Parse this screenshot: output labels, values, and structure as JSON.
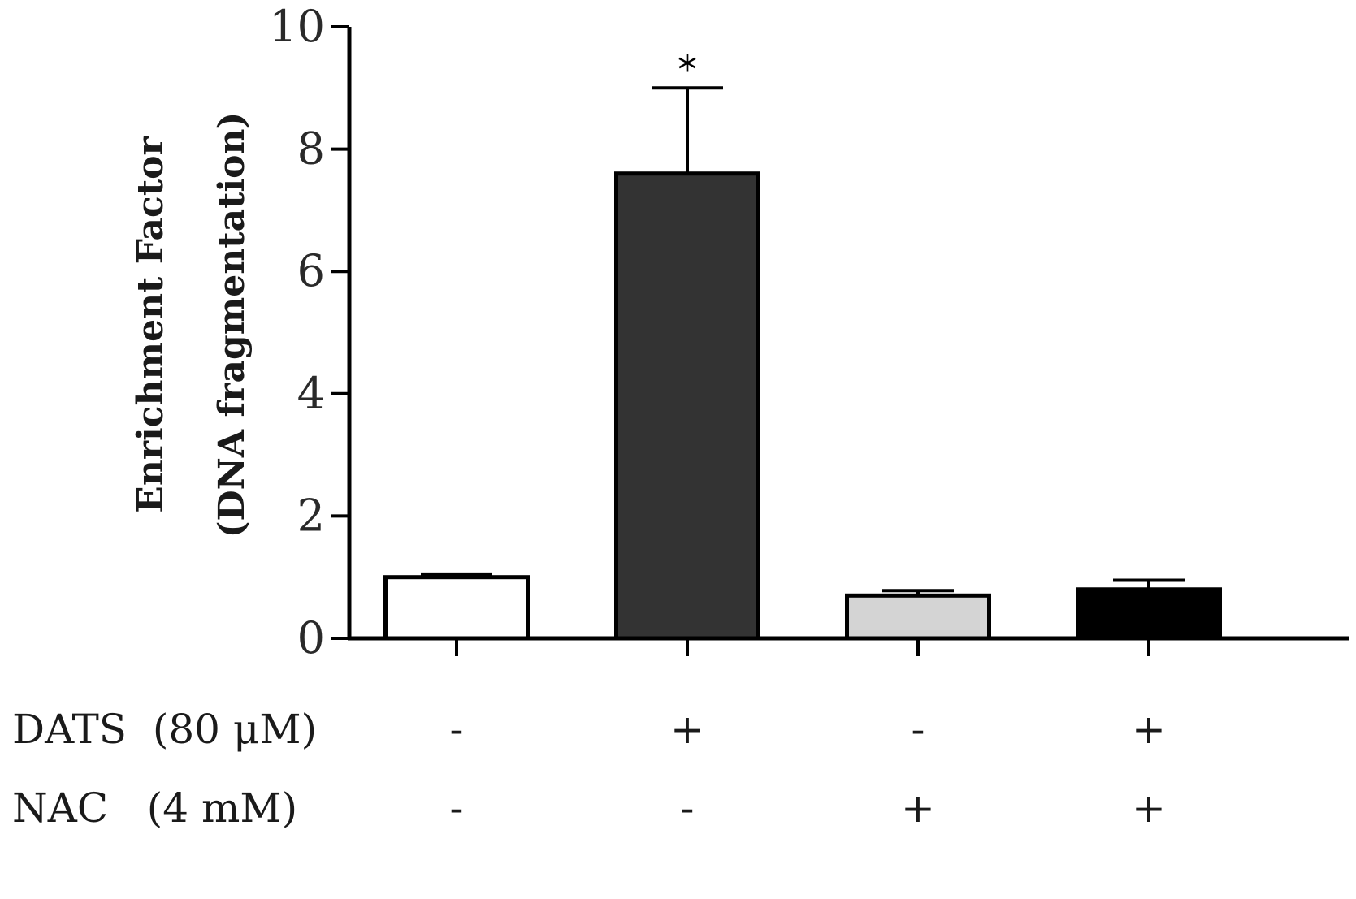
{
  "chart_data": {
    "type": "bar",
    "title": "",
    "xlabel": "",
    "ylabel_lines": [
      "Enrichment Factor",
      "(DNA fragmentation)"
    ],
    "ylim": [
      0,
      10
    ],
    "yticks": [
      "0",
      "2",
      "4",
      "6",
      "8",
      "10"
    ],
    "grid": false,
    "series": [
      {
        "values": [
          1.0,
          7.6,
          0.7,
          0.8
        ],
        "errors": [
          0.05,
          1.4,
          0.08,
          0.15
        ]
      }
    ],
    "bar_colors": [
      "#ffffff",
      "#333333",
      "#d4d4d4",
      "#000000"
    ],
    "significance": [
      "",
      "*",
      "",
      ""
    ],
    "conditions": [
      {
        "label": "DATS  (80 μM)",
        "signs": [
          "-",
          "+",
          "-",
          "+"
        ]
      },
      {
        "label": "NAC   (4 mM)",
        "signs": [
          "-",
          "-",
          "+",
          "+"
        ]
      }
    ]
  }
}
